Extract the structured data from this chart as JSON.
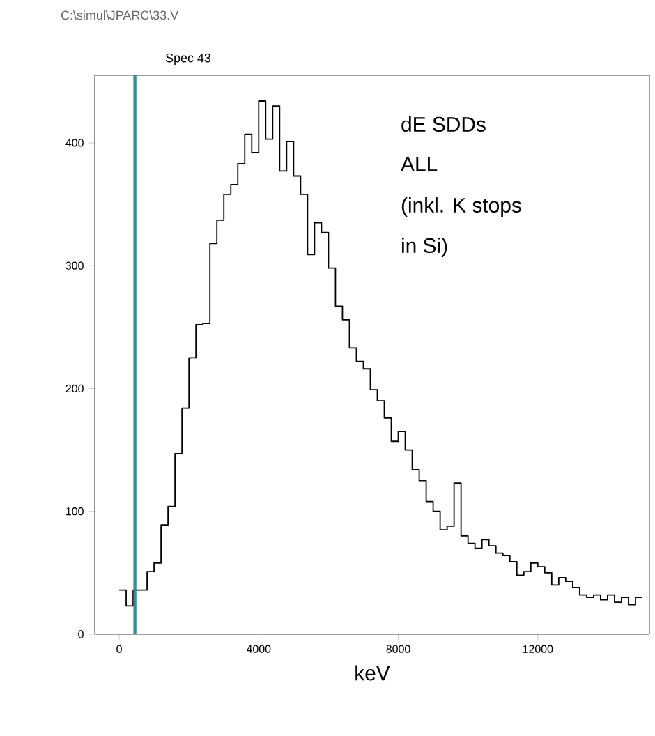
{
  "chart_data": {
    "type": "histogram",
    "title": "C:\\simul\\JPARC\\33.V",
    "subtitle": "Spec 43",
    "xlabel": "keV",
    "annotations": [
      "dE SDDs",
      "ALL",
      "(inkl. K stops",
      "in Si)"
    ],
    "bins": [
      0,
      200,
      400,
      600,
      800,
      1000,
      1200,
      1400,
      1600,
      1800,
      2000,
      2200,
      2400,
      2600,
      2800,
      3000,
      3200,
      3400,
      3600,
      3800,
      4000,
      4200,
      4400,
      4600,
      4800,
      5000,
      5200,
      5400,
      5600,
      5800,
      6000,
      6200,
      6400,
      6600,
      6800,
      7000,
      7200,
      7400,
      7600,
      7800,
      8000,
      8200,
      8400,
      8600,
      8800,
      9000,
      9200,
      9400,
      9600,
      9800,
      10000,
      10200,
      10400,
      10600,
      10800,
      11000,
      11200,
      11400,
      11600,
      11800,
      12000,
      12200,
      12400,
      12600,
      12800,
      13000,
      13200,
      13400,
      13600,
      13800,
      14000,
      14200,
      14400,
      14600,
      14800,
      15000
    ],
    "values": [
      36,
      23,
      36,
      36,
      51,
      58,
      89,
      104,
      147,
      184,
      225,
      252,
      253,
      318,
      337,
      358,
      366,
      383,
      407,
      392,
      434,
      403,
      430,
      377,
      401,
      373,
      358,
      309,
      335,
      327,
      298,
      267,
      256,
      233,
      222,
      216,
      199,
      190,
      176,
      157,
      165,
      150,
      134,
      125,
      108,
      100,
      85,
      88,
      123,
      80,
      74,
      70,
      77,
      72,
      66,
      64,
      59,
      48,
      51,
      58,
      55,
      50,
      40,
      46,
      43,
      38,
      32,
      30,
      32,
      28,
      32,
      26,
      30,
      24,
      30
    ],
    "color": "#000000",
    "xlim": [
      -700,
      15200
    ],
    "ylim": [
      0,
      455
    ],
    "xticks": [
      0,
      4000,
      8000,
      12000
    ],
    "yticks": [
      0,
      100,
      200,
      300,
      400
    ],
    "grid": false,
    "ref_lines": [
      {
        "axis": "x",
        "value": 450,
        "color": "#3a8c8f"
      }
    ]
  }
}
